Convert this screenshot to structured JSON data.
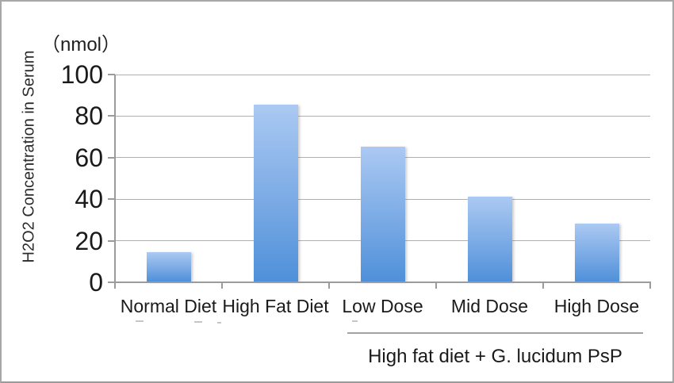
{
  "chart_data": {
    "type": "bar",
    "title": "",
    "unit_label": "（nmol）",
    "ylabel": "H2O2 Concentration in Serum",
    "xlabel": "",
    "categories": [
      "Normal Diet",
      "High Fat Diet",
      "Low Dose",
      "Mid Dose",
      "High Dose"
    ],
    "values": [
      14,
      85,
      65,
      41,
      28
    ],
    "ylim": [
      0,
      100
    ],
    "yticks": [
      0,
      20,
      40,
      60,
      80,
      100
    ],
    "grid": "horizontal",
    "legend": false,
    "group_annotation": {
      "label": "High fat diet + G. lucidum PsP",
      "categories": [
        "Low Dose",
        "Mid Dose",
        "High Dose"
      ]
    },
    "colors": {
      "bar_gradient_top": "#abc9f2",
      "bar_gradient_bottom": "#4f90d9",
      "gridline": "#b0b0b0",
      "axis": "#9b9b9b",
      "text": "#1a1a1a",
      "frame_border": "#a8a8a8"
    }
  }
}
